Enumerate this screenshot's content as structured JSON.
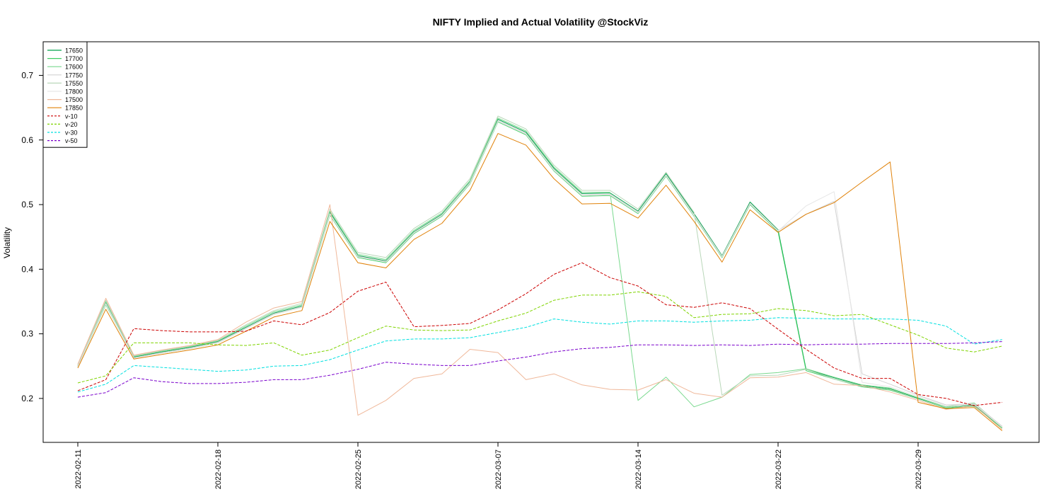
{
  "chart_data": {
    "type": "line",
    "title": "NIFTY Implied and Actual Volatility @StockViz",
    "xlabel": "",
    "ylabel": "Volatility",
    "ylim": [
      0.132,
      0.752
    ],
    "yticks": [
      0.2,
      0.3,
      0.4,
      0.5,
      0.6,
      0.7
    ],
    "xtick_labels": [
      "2022-02-11",
      "2022-02-18",
      "2022-02-25",
      "2022-03-07",
      "2022-03-14",
      "2022-03-22",
      "2022-03-29"
    ],
    "xtick_index": [
      0,
      5,
      10,
      15,
      20,
      25,
      30
    ],
    "n_points": 34,
    "legend_position": "top-left",
    "grid": false,
    "series": [
      {
        "name": "17650",
        "color": "#00a14b",
        "dash": "solid",
        "values": [
          0.25,
          0.348,
          0.264,
          0.272,
          0.279,
          0.288,
          0.31,
          0.332,
          0.343,
          0.488,
          0.421,
          0.413,
          0.458,
          0.485,
          0.535,
          0.632,
          0.612,
          0.556,
          0.517,
          0.518,
          0.49,
          0.548,
          0.486,
          0.421,
          0.504,
          0.461,
          0.245,
          0.232,
          0.22,
          0.215,
          0.2,
          0.186,
          0.19,
          0.155
        ]
      },
      {
        "name": "17700",
        "color": "#3fcf63",
        "dash": "solid",
        "values": [
          0.249,
          0.345,
          0.263,
          0.27,
          0.277,
          0.286,
          0.308,
          0.33,
          0.341,
          0.484,
          0.418,
          0.41,
          0.455,
          0.482,
          0.532,
          0.628,
          0.608,
          0.552,
          0.513,
          0.514,
          0.486,
          0.544,
          0.482,
          0.418,
          0.5,
          0.458,
          0.243,
          0.23,
          0.218,
          0.213,
          0.199,
          0.185,
          0.188,
          0.154
        ]
      },
      {
        "name": "17600",
        "color": "#79d98e",
        "dash": "solid",
        "values": [
          0.251,
          0.35,
          0.265,
          0.273,
          0.28,
          0.289,
          0.312,
          0.334,
          0.345,
          0.49,
          0.423,
          0.415,
          0.46,
          0.487,
          0.537,
          0.634,
          0.614,
          0.558,
          0.519,
          0.519,
          0.197,
          0.233,
          0.187,
          0.202,
          0.237,
          0.24,
          0.246,
          0.233,
          0.221,
          0.216,
          0.201,
          0.187,
          0.193,
          0.156
        ]
      },
      {
        "name": "17750",
        "color": "#d2d2d2",
        "dash": "solid",
        "values": [
          0.25,
          0.347,
          0.263,
          0.271,
          0.278,
          0.287,
          0.309,
          0.331,
          0.342,
          0.486,
          0.42,
          0.412,
          0.457,
          0.484,
          0.534,
          0.63,
          0.61,
          0.554,
          0.515,
          0.516,
          0.488,
          0.546,
          0.484,
          0.42,
          0.502,
          0.46,
          0.485,
          0.505,
          0.238,
          0.222,
          0.205,
          0.19,
          0.192,
          0.157
        ]
      },
      {
        "name": "17550",
        "color": "#b9d7b9",
        "dash": "solid",
        "values": [
          0.252,
          0.352,
          0.266,
          0.274,
          0.281,
          0.29,
          0.314,
          0.336,
          0.347,
          0.493,
          0.426,
          0.418,
          0.463,
          0.49,
          0.54,
          0.637,
          0.617,
          0.561,
          0.522,
          0.522,
          0.493,
          0.55,
          0.488,
          0.205,
          0.235,
          0.236,
          0.245,
          0.23,
          0.219,
          0.214,
          0.199,
          0.186,
          0.191,
          0.155
        ]
      },
      {
        "name": "17800",
        "color": "#e6e6e6",
        "dash": "solid",
        "values": [
          0.249,
          0.346,
          0.262,
          0.27,
          0.277,
          0.286,
          0.308,
          0.33,
          0.341,
          0.485,
          0.419,
          0.411,
          0.456,
          0.483,
          0.533,
          0.629,
          0.609,
          0.553,
          0.514,
          0.515,
          0.487,
          0.545,
          0.483,
          0.419,
          0.501,
          0.459,
          0.498,
          0.52,
          0.225,
          0.218,
          0.203,
          0.189,
          0.191,
          0.156
        ]
      },
      {
        "name": "17500",
        "color": "#f0b89a",
        "dash": "solid",
        "values": [
          0.253,
          0.355,
          0.267,
          0.275,
          0.282,
          0.291,
          0.318,
          0.34,
          0.35,
          0.5,
          0.174,
          0.197,
          0.231,
          0.238,
          0.276,
          0.271,
          0.229,
          0.238,
          0.221,
          0.214,
          0.213,
          0.229,
          0.208,
          0.202,
          0.232,
          0.233,
          0.24,
          0.222,
          0.22,
          0.21,
          0.197,
          0.183,
          0.189,
          0.152
        ]
      },
      {
        "name": "17850",
        "color": "#e0820a",
        "dash": "solid",
        "values": [
          0.247,
          0.338,
          0.261,
          0.268,
          0.275,
          0.283,
          0.304,
          0.326,
          0.336,
          0.474,
          0.41,
          0.402,
          0.446,
          0.471,
          0.522,
          0.61,
          0.592,
          0.54,
          0.501,
          0.502,
          0.479,
          0.53,
          0.474,
          0.411,
          0.492,
          0.457,
          0.485,
          0.503,
          0.535,
          0.566,
          0.194,
          0.184,
          0.186,
          0.15
        ]
      },
      {
        "name": "v-10",
        "color": "#cc0000",
        "dash": "dashed",
        "values": [
          0.212,
          0.229,
          0.308,
          0.305,
          0.303,
          0.303,
          0.304,
          0.32,
          0.314,
          0.333,
          0.366,
          0.38,
          0.311,
          0.313,
          0.316,
          0.337,
          0.362,
          0.392,
          0.41,
          0.387,
          0.374,
          0.345,
          0.341,
          0.348,
          0.339,
          0.307,
          0.276,
          0.247,
          0.231,
          0.231,
          0.206,
          0.2,
          0.189,
          0.194
        ]
      },
      {
        "name": "v-20",
        "color": "#7fd400",
        "dash": "dashed",
        "values": [
          0.224,
          0.235,
          0.286,
          0.286,
          0.286,
          0.283,
          0.282,
          0.286,
          0.267,
          0.275,
          0.294,
          0.312,
          0.306,
          0.305,
          0.306,
          0.32,
          0.332,
          0.352,
          0.36,
          0.36,
          0.365,
          0.358,
          0.325,
          0.33,
          0.331,
          0.339,
          0.336,
          0.328,
          0.33,
          0.314,
          0.298,
          0.278,
          0.272,
          0.281
        ]
      },
      {
        "name": "v-30",
        "color": "#00e0e0",
        "dash": "dashed",
        "values": [
          0.21,
          0.222,
          0.251,
          0.248,
          0.245,
          0.242,
          0.244,
          0.25,
          0.251,
          0.26,
          0.275,
          0.289,
          0.292,
          0.292,
          0.294,
          0.302,
          0.31,
          0.323,
          0.318,
          0.315,
          0.32,
          0.32,
          0.318,
          0.32,
          0.321,
          0.325,
          0.324,
          0.323,
          0.323,
          0.323,
          0.321,
          0.312,
          0.284,
          0.291
        ]
      },
      {
        "name": "v-50",
        "color": "#7a00cc",
        "dash": "dashed",
        "values": [
          0.202,
          0.209,
          0.232,
          0.226,
          0.223,
          0.223,
          0.225,
          0.229,
          0.229,
          0.236,
          0.245,
          0.256,
          0.253,
          0.251,
          0.251,
          0.258,
          0.264,
          0.272,
          0.277,
          0.279,
          0.283,
          0.283,
          0.282,
          0.283,
          0.282,
          0.284,
          0.283,
          0.284,
          0.284,
          0.285,
          0.285,
          0.285,
          0.286,
          0.288
        ]
      }
    ]
  }
}
